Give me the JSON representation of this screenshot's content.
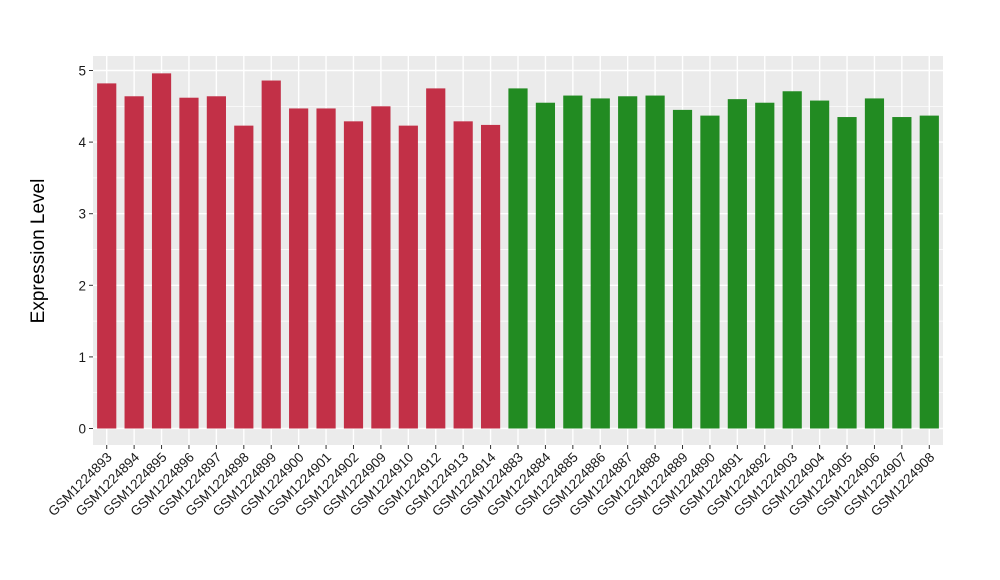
{
  "chart_data": {
    "type": "bar",
    "title": "",
    "xlabel": "",
    "ylabel": "Expression Level",
    "ylim": [
      0,
      5
    ],
    "yticks": [
      0,
      1,
      2,
      3,
      4,
      5
    ],
    "grid": true,
    "background": "#EBEBEB",
    "gridColor": "#FFFFFF",
    "groupColors": [
      "#C23047",
      "#228B22"
    ],
    "categories": [
      "GSM1224893",
      "GSM1224894",
      "GSM1224895",
      "GSM1224896",
      "GSM1224897",
      "GSM1224898",
      "GSM1224899",
      "GSM1224900",
      "GSM1224901",
      "GSM1224902",
      "GSM1224909",
      "GSM1224910",
      "GSM1224912",
      "GSM1224913",
      "GSM1224914",
      "GSM1224883",
      "GSM1224884",
      "GSM1224885",
      "GSM1224886",
      "GSM1224887",
      "GSM1224888",
      "GSM1224889",
      "GSM1224890",
      "GSM1224891",
      "GSM1224892",
      "GSM1224903",
      "GSM1224904",
      "GSM1224905",
      "GSM1224906",
      "GSM1224907",
      "GSM1224908"
    ],
    "values": [
      4.82,
      4.64,
      4.96,
      4.62,
      4.64,
      4.23,
      4.86,
      4.47,
      4.47,
      4.29,
      4.5,
      4.23,
      4.75,
      4.29,
      4.24,
      4.75,
      4.55,
      4.65,
      4.61,
      4.64,
      4.65,
      4.45,
      4.37,
      4.6,
      4.55,
      4.71,
      4.58,
      4.35,
      4.61,
      4.35,
      4.37
    ],
    "groups": [
      0,
      0,
      0,
      0,
      0,
      0,
      0,
      0,
      0,
      0,
      0,
      0,
      0,
      0,
      0,
      1,
      1,
      1,
      1,
      1,
      1,
      1,
      1,
      1,
      1,
      1,
      1,
      1,
      1,
      1,
      1
    ]
  }
}
